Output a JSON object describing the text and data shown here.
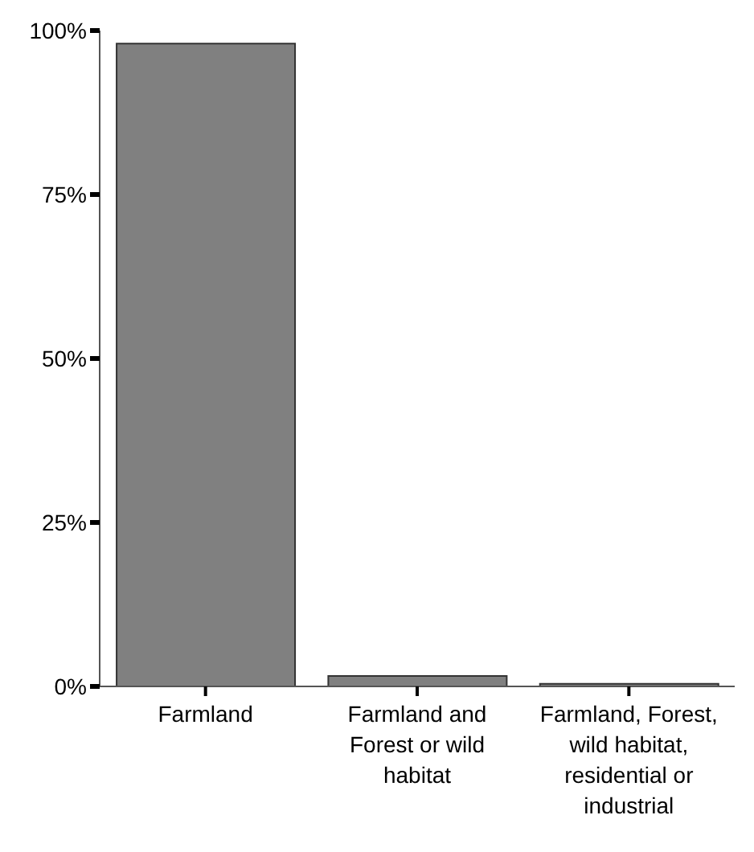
{
  "chart_data": {
    "type": "bar",
    "categories": [
      "Farmland",
      "Farmland and Forest or wild habitat",
      "Farmland, Forest, wild habitat, residential or industrial"
    ],
    "values": [
      98,
      1.6,
      0.4
    ],
    "color": "#808080",
    "ylim": [
      0,
      100
    ],
    "yticks": [
      {
        "value": 0,
        "label": "0%"
      },
      {
        "value": 25,
        "label": "25%"
      },
      {
        "value": 50,
        "label": "50%"
      },
      {
        "value": 75,
        "label": "75%"
      },
      {
        "value": 100,
        "label": "100%"
      }
    ],
    "grid": false
  }
}
